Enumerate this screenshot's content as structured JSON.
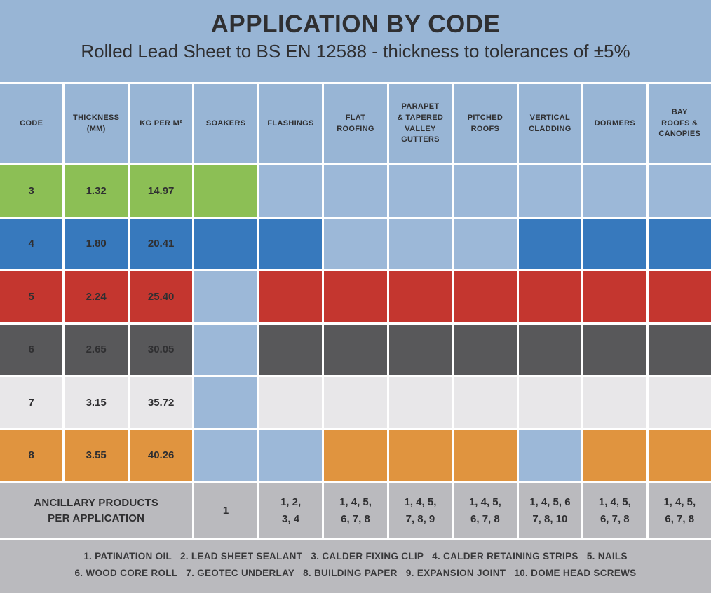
{
  "header": {
    "title": "APPLICATION BY CODE",
    "subtitle": "Rolled Lead Sheet to BS EN 12588 - thickness to tolerances of ±5%"
  },
  "colors": {
    "page_blue": "#98b5d5",
    "cell_blue": "#9cb8d8",
    "green": "#8cbf55",
    "blue": "#3779bd",
    "red": "#c4362f",
    "dark_gray": "#58585a",
    "light_gray": "#e8e7e9",
    "orange": "#e0943f",
    "gray_band": "#bababe",
    "text_dark": "#2f2f31"
  },
  "chart_data": {
    "type": "table",
    "title": "APPLICATION BY CODE",
    "subtitle": "Rolled Lead Sheet to BS EN 12588 - thickness to tolerances of ±5%",
    "columns": [
      "CODE",
      "THICKNESS\n(MM)",
      "KG PER M²",
      "SOAKERS",
      "FLASHINGS",
      "FLAT\nROOFING",
      "PARAPET\n& TAPERED\nVALLEY\nGUTTERS",
      "PITCHED\nROOFS",
      "VERTICAL\nCLADDING",
      "DORMERS",
      "BAY\nROOFS &\nCANOPIES"
    ],
    "application_columns": [
      "SOAKERS",
      "FLASHINGS",
      "FLAT ROOFING",
      "PARAPET & TAPERED VALLEY GUTTERS",
      "PITCHED ROOFS",
      "VERTICAL CLADDING",
      "DORMERS",
      "BAY ROOFS & CANOPIES"
    ],
    "rows": [
      {
        "code": "3",
        "thickness_mm": "1.32",
        "kg_per_m2": "14.97",
        "color": "green",
        "applications": [
          1,
          0,
          0,
          0,
          0,
          0,
          0,
          0
        ]
      },
      {
        "code": "4",
        "thickness_mm": "1.80",
        "kg_per_m2": "20.41",
        "color": "blue",
        "applications": [
          1,
          1,
          0,
          0,
          0,
          1,
          1,
          1
        ]
      },
      {
        "code": "5",
        "thickness_mm": "2.24",
        "kg_per_m2": "25.40",
        "color": "red",
        "applications": [
          0,
          1,
          1,
          1,
          1,
          1,
          1,
          1
        ]
      },
      {
        "code": "6",
        "thickness_mm": "2.65",
        "kg_per_m2": "30.05",
        "color": "dark_gray",
        "applications": [
          0,
          1,
          1,
          1,
          1,
          1,
          1,
          1
        ]
      },
      {
        "code": "7",
        "thickness_mm": "3.15",
        "kg_per_m2": "35.72",
        "color": "light_gray",
        "applications": [
          0,
          1,
          1,
          1,
          1,
          1,
          1,
          1
        ]
      },
      {
        "code": "8",
        "thickness_mm": "3.55",
        "kg_per_m2": "40.26",
        "color": "orange",
        "applications": [
          0,
          0,
          1,
          1,
          1,
          0,
          1,
          1
        ]
      }
    ],
    "ancillary": {
      "label": "ANCILLARY PRODUCTS\nPER APPLICATION",
      "values": [
        "1",
        "1, 2,\n3, 4",
        "1, 4, 5,\n6, 7, 8",
        "1, 4, 5,\n7, 8, 9",
        "1, 4, 5,\n6, 7, 8",
        "1, 4, 5, 6\n7, 8, 10",
        "1, 4, 5,\n6, 7, 8",
        "1, 4, 5,\n6, 7, 8"
      ]
    },
    "legend": {
      "line1": "1. PATINATION OIL   2. LEAD SHEET SEALANT   3. CALDER FIXING CLIP   4. CALDER RETAINING STRIPS   5. NAILS",
      "line2": "6. WOOD CORE ROLL   7. GEOTEC UNDERLAY   8. BUILDING PAPER   9. EXPANSION JOINT   10. DOME HEAD SCREWS"
    }
  }
}
